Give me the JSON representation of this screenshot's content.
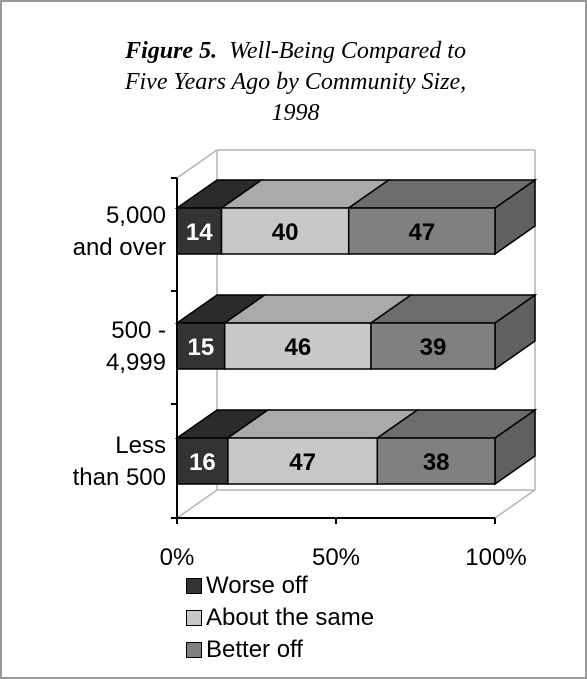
{
  "chart_data": {
    "type": "bar",
    "orientation": "horizontal",
    "stacked": true,
    "percent_stacked": true,
    "three_d": true,
    "title_label": "Figure 5.",
    "title_lines": [
      "Well-Being Compared to",
      "Five Years Ago by Community Size,",
      "1998"
    ],
    "categories": [
      "5,000 and over",
      "500 - 4,999",
      "Less than 500"
    ],
    "category_label_lines": [
      [
        "5,000",
        "and over"
      ],
      [
        "500 -",
        "4,999"
      ],
      [
        "Less",
        "than 500"
      ]
    ],
    "series": [
      {
        "name": "Worse off",
        "values": [
          14,
          15,
          16
        ],
        "color": "#333333",
        "label_color": "#ffffff"
      },
      {
        "name": "About the same",
        "values": [
          40,
          46,
          47
        ],
        "color": "#c8c8c8",
        "label_color": "#000000"
      },
      {
        "name": "Better off",
        "values": [
          47,
          39,
          38
        ],
        "color": "#808080",
        "label_color": "#000000"
      }
    ],
    "xaxis": {
      "ticks": [
        0,
        50,
        100
      ],
      "tick_labels": [
        "0%",
        "50%",
        "100%"
      ],
      "lim": [
        0,
        100
      ]
    },
    "legend": {
      "position": "bottom"
    },
    "grid": false
  }
}
